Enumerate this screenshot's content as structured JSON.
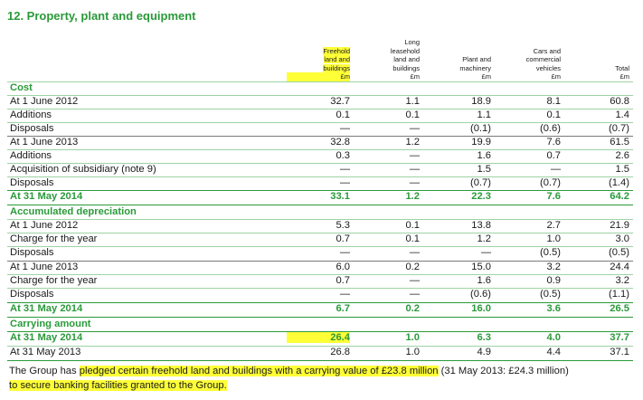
{
  "title": "12. Property, plant and equipment",
  "headers": [
    {
      "lines": "Freehold\nland and\nbuildings",
      "unit": "£m"
    },
    {
      "lines": "Long\nleasehold\nland and\nbuildings",
      "unit": "£m"
    },
    {
      "lines": "Plant and\nmachinery",
      "unit": "£m"
    },
    {
      "lines": "Cars and\ncommercial\nvehicles",
      "unit": "£m"
    },
    {
      "lines": "Total",
      "unit": "£m"
    }
  ],
  "rows": [
    {
      "label": "Cost",
      "type": "section",
      "values": []
    },
    {
      "label": "At 1 June 2012",
      "type": "data",
      "values": [
        "32.7",
        "1.1",
        "18.9",
        "8.1",
        "60.8"
      ]
    },
    {
      "label": "Additions",
      "type": "data",
      "values": [
        "0.1",
        "0.1",
        "1.1",
        "0.1",
        "1.4"
      ]
    },
    {
      "label": "Disposals",
      "type": "data",
      "values": [
        "—",
        "—",
        "(0.1)",
        "(0.6)",
        "(0.7)"
      ]
    },
    {
      "label": "At 1 June 2013",
      "type": "data",
      "values": [
        "32.8",
        "1.2",
        "19.9",
        "7.6",
        "61.5"
      ]
    },
    {
      "label": "Additions",
      "type": "data",
      "values": [
        "0.3",
        "—",
        "1.6",
        "0.7",
        "2.6"
      ]
    },
    {
      "label": "Acquisition of subsidiary (note 9)",
      "type": "data",
      "values": [
        "—",
        "—",
        "1.5",
        "—",
        "1.5"
      ]
    },
    {
      "label": "Disposals",
      "type": "data",
      "values": [
        "—",
        "—",
        "(0.7)",
        "(0.7)",
        "(1.4)"
      ]
    },
    {
      "label": "At 31 May 2014",
      "type": "total",
      "values": [
        "33.1",
        "1.2",
        "22.3",
        "7.6",
        "64.2"
      ]
    },
    {
      "label": "Accumulated depreciation",
      "type": "section",
      "values": []
    },
    {
      "label": "At 1 June 2012",
      "type": "data",
      "values": [
        "5.3",
        "0.1",
        "13.8",
        "2.7",
        "21.9"
      ]
    },
    {
      "label": "Charge for the year",
      "type": "data",
      "values": [
        "0.7",
        "0.1",
        "1.2",
        "1.0",
        "3.0"
      ]
    },
    {
      "label": "Disposals",
      "type": "data",
      "values": [
        "—",
        "—",
        "—",
        "(0.5)",
        "(0.5)"
      ]
    },
    {
      "label": "At 1 June 2013",
      "type": "data",
      "values": [
        "6.0",
        "0.2",
        "15.0",
        "3.2",
        "24.4"
      ]
    },
    {
      "label": "Charge for the year",
      "type": "data",
      "values": [
        "0.7",
        "—",
        "1.6",
        "0.9",
        "3.2"
      ]
    },
    {
      "label": "Disposals",
      "type": "data",
      "values": [
        "—",
        "—",
        "(0.6)",
        "(0.5)",
        "(1.1)"
      ]
    },
    {
      "label": "At 31 May 2014",
      "type": "total",
      "values": [
        "6.7",
        "0.2",
        "16.0",
        "3.6",
        "26.5"
      ]
    },
    {
      "label": "Carrying amount",
      "type": "section",
      "values": []
    },
    {
      "label": "At 31 May 2014",
      "type": "total",
      "values": [
        "26.4",
        "1.0",
        "6.3",
        "4.0",
        "37.7"
      ]
    },
    {
      "label": "At 31 May 2013",
      "type": "data",
      "values": [
        "26.8",
        "1.0",
        "4.9",
        "4.4",
        "37.1"
      ]
    }
  ],
  "note": {
    "line1_prefix": "The Group has ",
    "line1_highlight": "pledged certain freehold land and buildings with a carrying value of £23.8 million",
    "line1_suffix": " (31 May 2013: £24.3 million)",
    "line2_highlight": "to secure banking facilities granted to the Group."
  },
  "highlight_color": "#ffff38",
  "accent_color": "#2a9a3a"
}
